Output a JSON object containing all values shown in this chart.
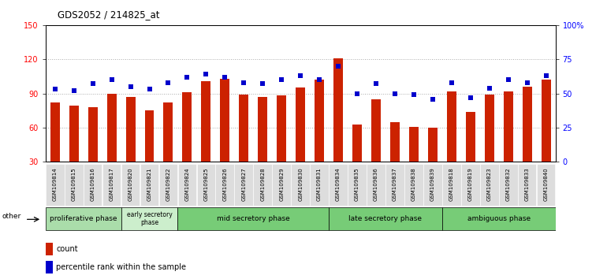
{
  "title": "GDS2052 / 214825_at",
  "samples": [
    "GSM109814",
    "GSM109815",
    "GSM109816",
    "GSM109817",
    "GSM109820",
    "GSM109821",
    "GSM109822",
    "GSM109824",
    "GSM109825",
    "GSM109826",
    "GSM109827",
    "GSM109828",
    "GSM109829",
    "GSM109830",
    "GSM109831",
    "GSM109834",
    "GSM109835",
    "GSM109836",
    "GSM109837",
    "GSM109838",
    "GSM109839",
    "GSM109818",
    "GSM109819",
    "GSM109823",
    "GSM109832",
    "GSM109833",
    "GSM109840"
  ],
  "counts": [
    82,
    79,
    78,
    90,
    87,
    75,
    82,
    91,
    101,
    103,
    89,
    87,
    88,
    95,
    102,
    121,
    63,
    85,
    65,
    61,
    60,
    92,
    74,
    89,
    92,
    96,
    102
  ],
  "percentiles": [
    53,
    52,
    57,
    60,
    55,
    53,
    58,
    62,
    64,
    62,
    58,
    57,
    60,
    63,
    60,
    70,
    50,
    57,
    50,
    49,
    46,
    58,
    47,
    54,
    60,
    58,
    63
  ],
  "ylim_left": [
    30,
    150
  ],
  "ylim_right": [
    0,
    100
  ],
  "yticks_left": [
    30,
    60,
    90,
    120,
    150
  ],
  "yticks_right": [
    0,
    25,
    50,
    75,
    100
  ],
  "ytick_labels_right": [
    "0",
    "25",
    "50",
    "75",
    "100%"
  ],
  "bar_color": "#cc2200",
  "dot_color": "#0000cc",
  "phases": [
    {
      "label": "proliferative phase",
      "start": 0,
      "end": 4
    },
    {
      "label": "early secretory\nphase",
      "start": 4,
      "end": 7
    },
    {
      "label": "mid secretory phase",
      "start": 7,
      "end": 15
    },
    {
      "label": "late secretory phase",
      "start": 15,
      "end": 21
    },
    {
      "label": "ambiguous phase",
      "start": 21,
      "end": 27
    }
  ],
  "phase_colors": [
    "#aaddaa",
    "#cceecc",
    "#77cc77",
    "#77cc77",
    "#77cc77"
  ],
  "legend_count_label": "count",
  "legend_percentile_label": "percentile rank within the sample",
  "other_label": "other",
  "grid_dotted_color": "#aaaaaa",
  "bg_color": "#ffffff",
  "tick_bg_color": "#dddddd"
}
